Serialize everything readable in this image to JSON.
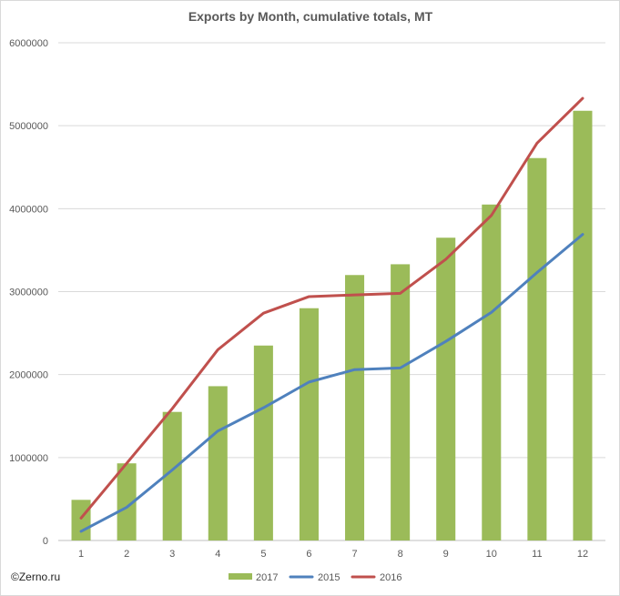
{
  "chart_data": {
    "type": "bar",
    "title": "Exports by Month, cumulative totals, MT",
    "xlabel": "",
    "ylabel": "",
    "categories": [
      "1",
      "2",
      "3",
      "4",
      "5",
      "6",
      "7",
      "8",
      "9",
      "10",
      "11",
      "12"
    ],
    "ylim": [
      0,
      6000000
    ],
    "yticks": [
      0,
      1000000,
      2000000,
      3000000,
      4000000,
      5000000,
      6000000
    ],
    "ytick_labels": [
      "0",
      "1000000",
      "2000000",
      "3000000",
      "4000000",
      "5000000",
      "6000000"
    ],
    "grid": true,
    "legend_position": "bottom",
    "series": [
      {
        "name": "2017",
        "kind": "bar",
        "color": "#9bbb59",
        "values": [
          490000,
          930000,
          1550000,
          1860000,
          2350000,
          2800000,
          3200000,
          3330000,
          3650000,
          4050000,
          4610000,
          5180000
        ]
      },
      {
        "name": "2015",
        "kind": "line",
        "color": "#4f81bd",
        "values": [
          110000,
          400000,
          850000,
          1320000,
          1600000,
          1910000,
          2060000,
          2080000,
          2400000,
          2750000,
          3230000,
          3690000
        ]
      },
      {
        "name": "2016",
        "kind": "line",
        "color": "#c0504d",
        "values": [
          270000,
          930000,
          1590000,
          2300000,
          2740000,
          2940000,
          2960000,
          2980000,
          3390000,
          3920000,
          4790000,
          5330000
        ]
      }
    ]
  },
  "credit": "©Zerno.ru"
}
